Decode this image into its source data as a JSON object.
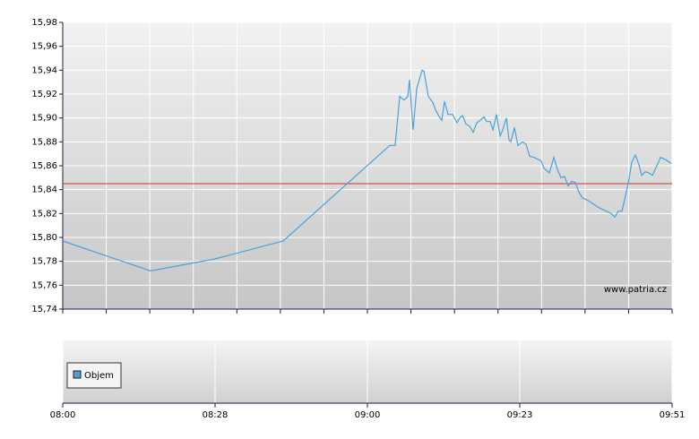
{
  "chart_data": [
    {
      "type": "line",
      "ylim": [
        15.74,
        15.98
      ],
      "yticks": [
        {
          "value": 15.74,
          "label": "15,74"
        },
        {
          "value": 15.76,
          "label": "15,76"
        },
        {
          "value": 15.78,
          "label": "15,78"
        },
        {
          "value": 15.8,
          "label": "15,80"
        },
        {
          "value": 15.82,
          "label": "15,82"
        },
        {
          "value": 15.84,
          "label": "15,84"
        },
        {
          "value": 15.86,
          "label": "15,86"
        },
        {
          "value": 15.88,
          "label": "15,88"
        },
        {
          "value": 15.9,
          "label": "15,90"
        },
        {
          "value": 15.92,
          "label": "15,92"
        },
        {
          "value": 15.94,
          "label": "15,94"
        },
        {
          "value": 15.96,
          "label": "15,96"
        },
        {
          "value": 15.98,
          "label": "15,98"
        }
      ],
      "xlim": [
        0,
        4
      ],
      "grid": true,
      "reference_line": {
        "value": 15.845,
        "color": "#d03030"
      },
      "watermark": "www.patria.cz",
      "series": [
        {
          "color": "#4aa3d8",
          "x": [
            0,
            0.576,
            1,
            1.447,
            2.147,
            2.182,
            2.212,
            2.241,
            2.265,
            2.276,
            2.3,
            2.324,
            2.359,
            2.371,
            2.4,
            2.429,
            2.447,
            2.471,
            2.488,
            2.506,
            2.529,
            2.559,
            2.588,
            2.606,
            2.624,
            2.647,
            2.671,
            2.694,
            2.718,
            2.741,
            2.765,
            2.782,
            2.806,
            2.824,
            2.847,
            2.871,
            2.888,
            2.912,
            2.929,
            2.941,
            2.965,
            2.988,
            3.018,
            3.041,
            3.065,
            3.094,
            3.141,
            3.159,
            3.194,
            3.224,
            3.247,
            3.271,
            3.294,
            3.318,
            3.341,
            3.365,
            3.388,
            3.412,
            3.447,
            3.518,
            3.6,
            3.624,
            3.647,
            3.671,
            3.712,
            3.735,
            3.759,
            3.782,
            3.8,
            3.824,
            3.847,
            3.871,
            3.9,
            3.924,
            3.959,
            3.994
          ],
          "values": [
            15.797,
            15.772,
            15.782,
            15.797,
            15.877,
            15.877,
            15.918,
            15.915,
            15.918,
            15.932,
            15.89,
            15.925,
            15.94,
            15.939,
            15.918,
            15.913,
            15.907,
            15.901,
            15.898,
            15.914,
            15.903,
            15.903,
            15.896,
            15.9,
            15.902,
            15.895,
            15.893,
            15.888,
            15.896,
            15.898,
            15.901,
            15.897,
            15.897,
            15.89,
            15.903,
            15.885,
            15.89,
            15.9,
            15.882,
            15.88,
            15.892,
            15.877,
            15.88,
            15.878,
            15.868,
            15.867,
            15.864,
            15.858,
            15.854,
            15.867,
            15.857,
            15.85,
            15.851,
            15.843,
            15.847,
            15.846,
            15.838,
            15.833,
            15.831,
            15.825,
            15.82,
            15.817,
            15.822,
            15.822,
            15.845,
            15.863,
            15.869,
            15.861,
            15.852,
            15.855,
            15.854,
            15.852,
            15.86,
            15.867,
            15.865,
            15.862
          ]
        }
      ]
    },
    {
      "type": "bar",
      "xlim": [
        0,
        4
      ],
      "xticks": [
        {
          "value": 0,
          "label": "08:00"
        },
        {
          "value": 1,
          "label": "08:28"
        },
        {
          "value": 2,
          "label": "09:00"
        },
        {
          "value": 3,
          "label": "09:23"
        },
        {
          "value": 4,
          "label": "09:51"
        }
      ],
      "series": [
        {
          "name": "Objem",
          "color": "#4d9fd6"
        }
      ]
    }
  ]
}
